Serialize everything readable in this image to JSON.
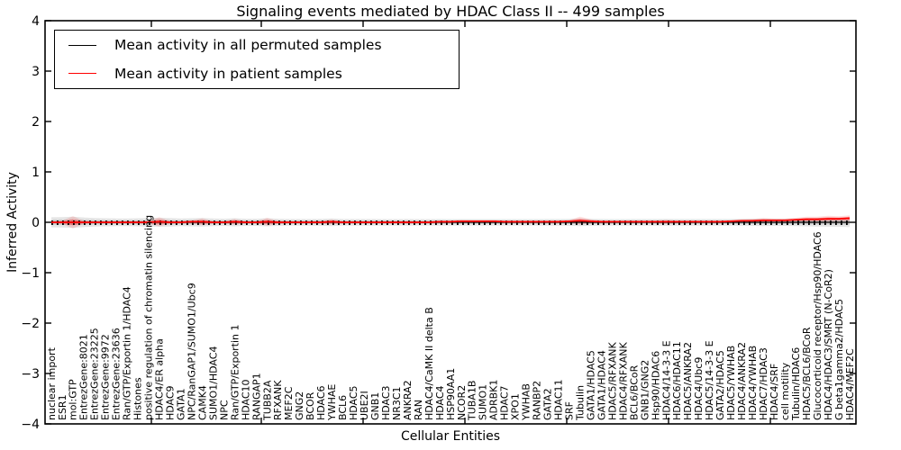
{
  "chart_data": {
    "type": "line",
    "title": "Signaling events mediated by HDAC Class II -- 499 samples",
    "xlabel": "Cellular Entities",
    "ylabel": "Inferred Activity",
    "ylim": [
      -4,
      4
    ],
    "yticks": [
      4,
      3,
      2,
      1,
      0,
      -1,
      -2,
      -3,
      -4
    ],
    "grid": false,
    "legend": {
      "position": "upper left",
      "entries": [
        {
          "label": "Mean activity in all permuted samples",
          "color": "#000000"
        },
        {
          "label": "Mean activity in patient samples",
          "color": "#ff0000"
        }
      ]
    },
    "categories": [
      "nuclear import",
      "ESR1",
      "mol:GTP",
      "EntrezGene:8021",
      "EntrezGene:23225",
      "EntrezGene:9972",
      "EntrezGene:23636",
      "Ran/GTP/Exportin 1/HDAC4",
      "Histones",
      "positive regulation of chromatin silencing",
      "HDAC4/ER alpha",
      "HDAC9",
      "GATA1",
      "NPC/RanGAP1/SUMO1/Ubc9",
      "CAMK4",
      "SUMO1/HDAC4",
      "NPC",
      "Ran/GTP/Exportin 1",
      "HDAC10",
      "RANGAP1",
      "TUBB2A",
      "RFXANK",
      "MEF2C",
      "GNG2",
      "BCOR",
      "HDAC6",
      "YWHAE",
      "BCL6",
      "HDAC5",
      "UBE2I",
      "GNB1",
      "HDAC3",
      "NR3C1",
      "ANKRA2",
      "RAN",
      "HDAC4/CaMK II delta B",
      "HDAC4",
      "HSP90AA1",
      "NCOR2",
      "TUBA1B",
      "SUMO1",
      "ADRBK1",
      "HDAC7",
      "XPO1",
      "YWHAB",
      "RANBP2",
      "GATA2",
      "HDAC11",
      "SRF",
      "Tubulin",
      "GATA1/HDAC5",
      "GATA1/HDAC4",
      "HDAC5/RFXANK",
      "HDAC4/RFXANK",
      "BCL6/BCoR",
      "GNB1/GNG2",
      "Hsp90/HDAC6",
      "HDAC4/14-3-3 E",
      "HDAC6/HDAC11",
      "HDAC5/ANKRA2",
      "HDAC4/Ubc9",
      "HDAC5/14-3-3 E",
      "GATA2/HDAC5",
      "HDAC5/YWHAB",
      "HDAC4/ANKRA2",
      "HDAC4/YWHAB",
      "HDAC7/HDAC3",
      "HDAC4/SRF",
      "cell motility",
      "Tubulin/HDAC6",
      "HDAC5/BCL6/BCoR",
      "Glucocorticoid receptor/Hsp90/HDAC6",
      "HDAC4/HDAC3/SMRT (N-CoR2)",
      "G beta1gamma2/HDAC5",
      "HDAC4/MEF2C"
    ],
    "series": [
      {
        "name": "Mean activity in all permuted samples",
        "color": "#000000",
        "values": [
          0,
          0,
          0,
          0,
          0,
          0,
          0,
          0,
          0,
          0,
          0,
          0,
          0,
          0,
          0,
          0,
          0,
          0,
          0,
          0,
          0,
          0,
          0,
          0,
          0,
          0,
          0,
          0,
          0,
          0,
          0,
          0,
          0,
          0,
          0,
          0,
          0,
          0,
          0,
          0,
          0,
          0,
          0,
          0,
          0,
          0,
          0,
          0,
          0,
          0,
          0,
          0,
          0,
          0,
          0,
          0,
          0,
          0,
          0,
          0,
          0,
          0,
          0,
          0,
          0,
          0,
          0,
          0,
          0,
          0,
          0,
          0,
          0,
          0,
          0
        ],
        "std": [
          0.05,
          0.052,
          0.055,
          0.048,
          0.042,
          0.04,
          0.038,
          0.038,
          0.04,
          0.042,
          0.045,
          0.042,
          0.038,
          0.04,
          0.042,
          0.038,
          0.036,
          0.04,
          0.036,
          0.036,
          0.04,
          0.036,
          0.034,
          0.034,
          0.034,
          0.035,
          0.038,
          0.034,
          0.033,
          0.033,
          0.034,
          0.032,
          0.032,
          0.034,
          0.032,
          0.032,
          0.034,
          0.032,
          0.032,
          0.032,
          0.032,
          0.032,
          0.032,
          0.032,
          0.032,
          0.032,
          0.033,
          0.033,
          0.035,
          0.038,
          0.035,
          0.033,
          0.032,
          0.032,
          0.033,
          0.033,
          0.034,
          0.035,
          0.033,
          0.033,
          0.033,
          0.033,
          0.033,
          0.034,
          0.035,
          0.036,
          0.038,
          0.036,
          0.036,
          0.038,
          0.04,
          0.042,
          0.044,
          0.045,
          0.048
        ]
      },
      {
        "name": "Mean activity in patient samples",
        "color": "#ff0000",
        "values": [
          0,
          0,
          0,
          0,
          0,
          0,
          0,
          0,
          0,
          0,
          0.01,
          0,
          0,
          0.01,
          0.01,
          0,
          0,
          0.01,
          0,
          0,
          0.01,
          0,
          0,
          0,
          0,
          0,
          0.01,
          0,
          0,
          0,
          0,
          0,
          0,
          0,
          0,
          0,
          0.01,
          0.01,
          0.02,
          0.02,
          0.02,
          0.02,
          0.01,
          0.01,
          0.01,
          0.01,
          0.01,
          0.01,
          0.02,
          0.03,
          0.02,
          0.01,
          0.01,
          0.01,
          0.01,
          0.01,
          0.01,
          0.01,
          0.01,
          0.01,
          0.01,
          0.01,
          0.01,
          0.02,
          0.03,
          0.03,
          0.04,
          0.04,
          0.04,
          0.05,
          0.06,
          0.06,
          0.07,
          0.07,
          0.08
        ],
        "std": [
          0.01,
          0.015,
          0.06,
          0.015,
          0.01,
          0.01,
          0.01,
          0.01,
          0.01,
          0.015,
          0.045,
          0.015,
          0.01,
          0.015,
          0.035,
          0.01,
          0.01,
          0.03,
          0.01,
          0.01,
          0.04,
          0.015,
          0.01,
          0.01,
          0.01,
          0.01,
          0.025,
          0.01,
          0.01,
          0.01,
          0.01,
          0.01,
          0.01,
          0.01,
          0.01,
          0.01,
          0.012,
          0.012,
          0.015,
          0.012,
          0.012,
          0.012,
          0.01,
          0.01,
          0.01,
          0.01,
          0.01,
          0.012,
          0.012,
          0.04,
          0.02,
          0.012,
          0.01,
          0.01,
          0.01,
          0.01,
          0.012,
          0.018,
          0.012,
          0.01,
          0.01,
          0.01,
          0.01,
          0.012,
          0.015,
          0.018,
          0.022,
          0.018,
          0.018,
          0.02,
          0.025,
          0.025,
          0.03,
          0.025,
          0.03
        ]
      }
    ]
  }
}
